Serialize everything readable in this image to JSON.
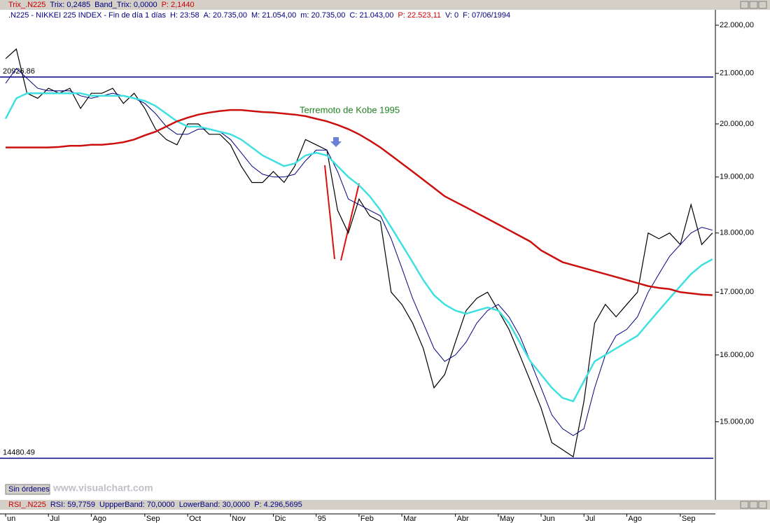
{
  "trix_bar": [
    "Trix_.N225",
    "Trix: 0,2485",
    "Band_Trix: 0,0000",
    "P: 2,1440"
  ],
  "info_bar": [
    ".N225 - NIKKEI 225 INDEX - Fin de día 1 días",
    "H: 23:58",
    "A: 20.735,00",
    "M: 21.054,00",
    "m: 20.735,00",
    "C: 21.043,00",
    "P: 22.523,11",
    "V: 0",
    "F: 07/06/1994"
  ],
  "rsi_bar": [
    "RSI_.N225",
    "RSI: 59,7759",
    "UppperBand: 70,0000",
    "LowerBand: 30,0000",
    "P: 4.296,5695"
  ],
  "button": "Sin órdenes",
  "watermark": "www.visualchart.com",
  "chart_data": {
    "type": "line",
    "log_scale": true,
    "annotation": "Terremoto de Kobe 1995",
    "categories": [
      "un",
      null,
      null,
      null,
      "Jul",
      null,
      null,
      null,
      "Ago",
      null,
      null,
      null,
      null,
      "Sep",
      null,
      null,
      null,
      "Oct",
      null,
      null,
      null,
      "Nov",
      null,
      null,
      null,
      "Dic",
      null,
      null,
      null,
      "95",
      null,
      null,
      null,
      "Feb",
      null,
      null,
      null,
      "Mar",
      null,
      null,
      null,
      null,
      "Abr",
      null,
      null,
      null,
      "May",
      null,
      null,
      null,
      "Jun",
      null,
      null,
      null,
      "Jul",
      null,
      null,
      null,
      "Ago",
      null,
      null,
      null,
      null,
      "Sep",
      null,
      null,
      null
    ],
    "series": [
      {
        "color": "#000000",
        "values": [
          21300,
          21500,
          20600,
          20500,
          20700,
          20600,
          20700,
          20300,
          20600,
          20600,
          20700,
          20400,
          20600,
          20300,
          19900,
          19700,
          19600,
          20000,
          20000,
          19800,
          19800,
          19600,
          19200,
          18900,
          18900,
          19100,
          18900,
          19200,
          19700,
          19600,
          19500,
          18400,
          18000,
          18600,
          18300,
          18200,
          17000,
          16800,
          16500,
          16100,
          15500,
          15700,
          16200,
          16700,
          16900,
          17000,
          16700,
          16400,
          16000,
          15600,
          15200,
          14700,
          14600,
          14500,
          15300,
          16500,
          16800,
          16600,
          16800,
          17000,
          18000,
          17900,
          18000,
          17800,
          18500,
          17800,
          18000
        ]
      },
      {
        "color": "#000080",
        "values": [
          20800,
          21100,
          20900,
          20700,
          20650,
          20650,
          20650,
          20550,
          20500,
          20550,
          20600,
          20550,
          20500,
          20400,
          20200,
          19950,
          19800,
          19800,
          19900,
          19900,
          19850,
          19700,
          19450,
          19200,
          19050,
          19000,
          19000,
          19050,
          19300,
          19500,
          19500,
          19100,
          18600,
          18500,
          18400,
          18300,
          17900,
          17400,
          16900,
          16500,
          16100,
          15900,
          16000,
          16200,
          16500,
          16700,
          16800,
          16600,
          16300,
          15900,
          15500,
          15100,
          14900,
          14800,
          14900,
          15500,
          16000,
          16300,
          16400,
          16600,
          17000,
          17300,
          17600,
          17800,
          18000,
          18100,
          18050
        ]
      },
      {
        "color": "#40e0e0",
        "values": [
          20100,
          20500,
          20600,
          20600,
          20600,
          20600,
          20600,
          20600,
          20550,
          20550,
          20550,
          20550,
          20500,
          20450,
          20350,
          20200,
          20050,
          19950,
          19950,
          19900,
          19850,
          19800,
          19700,
          19550,
          19400,
          19300,
          19200,
          19250,
          19400,
          19450,
          19400,
          19200,
          19000,
          18850,
          18650,
          18400,
          18100,
          17800,
          17500,
          17200,
          16950,
          16800,
          16700,
          16650,
          16700,
          16750,
          16700,
          16500,
          16200,
          15900,
          15700,
          15500,
          15350,
          15300,
          15600,
          15900,
          16000,
          16100,
          16200,
          16300,
          16500,
          16700,
          16900,
          17100,
          17300,
          17450,
          17550
        ]
      },
      {
        "color": "#cc1010",
        "values": [
          19550,
          19550,
          19550,
          19550,
          19550,
          19560,
          19580,
          19580,
          19600,
          19600,
          19620,
          19650,
          19700,
          19780,
          19850,
          19950,
          20050,
          20120,
          20180,
          20220,
          20250,
          20270,
          20270,
          20250,
          20230,
          20220,
          20200,
          20180,
          20150,
          20100,
          20050,
          19980,
          19900,
          19800,
          19680,
          19550,
          19400,
          19250,
          19100,
          18950,
          18800,
          18650,
          18550,
          18450,
          18350,
          18250,
          18150,
          18050,
          17950,
          17850,
          17700,
          17600,
          17500,
          17450,
          17400,
          17350,
          17300,
          17250,
          17200,
          17150,
          17100,
          17070,
          17050,
          17000,
          16980,
          16960,
          16950
        ]
      }
    ],
    "hlines": [
      20926.86,
      14480.49
    ],
    "hline_color": "#000080",
    "ylim": [
      13900,
      22330
    ],
    "yticks": [
      {
        "value": 15000,
        "label": "15.000,00"
      },
      {
        "value": 16000,
        "label": "16.000,00"
      },
      {
        "value": 17000,
        "label": "17.000,00"
      },
      {
        "value": 18000,
        "label": "18.000,00"
      },
      {
        "value": 19000,
        "label": "19.000,00"
      },
      {
        "value": 20000,
        "label": "20.000,00"
      },
      {
        "value": 21000,
        "label": "21.000,00"
      },
      {
        "value": 22000,
        "label": "22.000,00"
      }
    ]
  }
}
